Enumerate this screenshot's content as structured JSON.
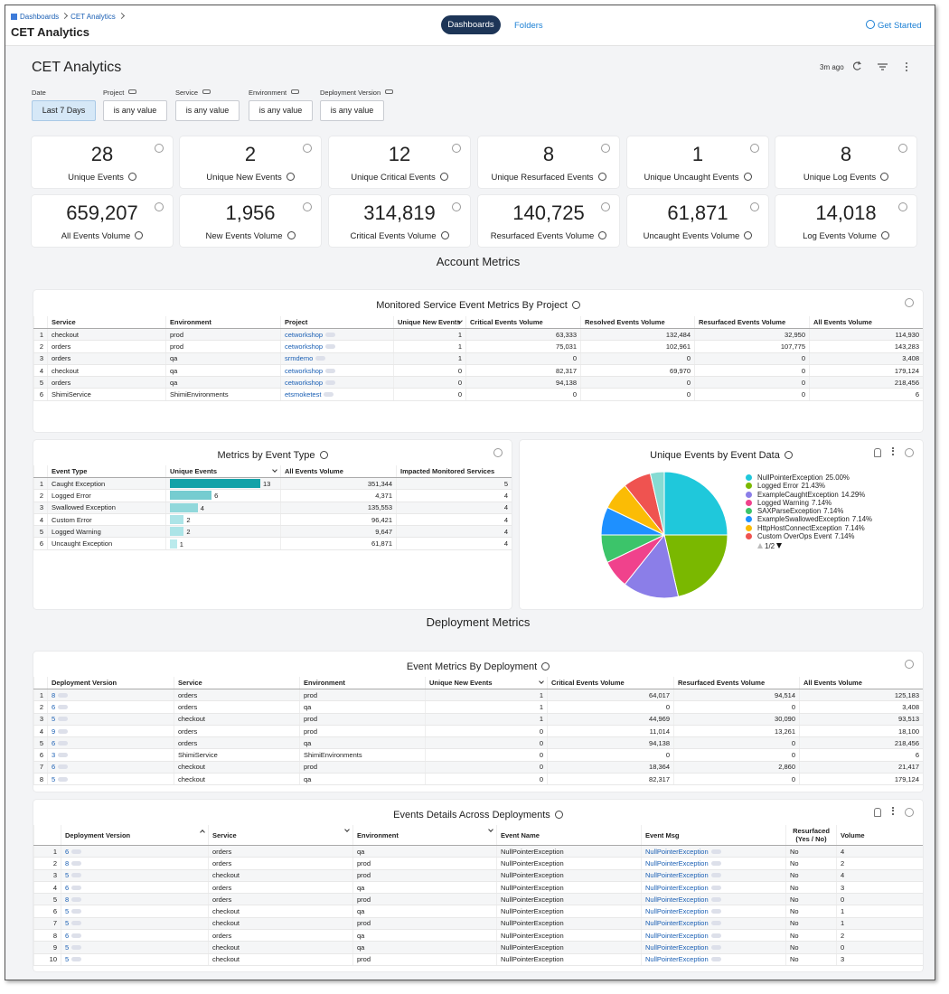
{
  "header": {
    "breadcrumb": [
      "Dashboards",
      "CET Analytics"
    ],
    "title": "CET Analytics",
    "tabs": [
      "Dashboards",
      "Folders"
    ],
    "help": "Get Started"
  },
  "dashboard": {
    "title": "CET Analytics",
    "updated": "3m ago",
    "filters": [
      {
        "label": "Date",
        "value": "Last 7 Days"
      },
      {
        "label": "Project",
        "value": "is any value"
      },
      {
        "label": "Service",
        "value": "is any value"
      },
      {
        "label": "Environment",
        "value": "is any value"
      },
      {
        "label": "Deployment Version",
        "value": "is any value"
      }
    ]
  },
  "tiles": [
    {
      "value": "28",
      "label": "Unique Events"
    },
    {
      "value": "2",
      "label": "Unique New Events"
    },
    {
      "value": "12",
      "label": "Unique Critical Events"
    },
    {
      "value": "8",
      "label": "Unique Resurfaced Events"
    },
    {
      "value": "1",
      "label": "Unique Uncaught Events"
    },
    {
      "value": "8",
      "label": "Unique Log Events"
    },
    {
      "value": "659,207",
      "label": "All Events Volume"
    },
    {
      "value": "1,956",
      "label": "New Events Volume"
    },
    {
      "value": "314,819",
      "label": "Critical Events Volume"
    },
    {
      "value": "140,725",
      "label": "Resurfaced Events Volume"
    },
    {
      "value": "61,871",
      "label": "Uncaught Events Volume"
    },
    {
      "value": "14,018",
      "label": "Log Events Volume"
    }
  ],
  "sections": [
    "Account Metrics",
    "Deployment Metrics"
  ],
  "project_table": {
    "title": "Monitored Service Event Metrics By Project",
    "columns": [
      "Service",
      "Environment",
      "Project",
      "Unique New Events",
      "Critical Events Volume",
      "Resolved Events Volume",
      "Resurfaced Events Volume",
      "All Events Volume"
    ],
    "rows": [
      [
        "1",
        "checkout",
        "prod",
        "cetworkshop",
        "1",
        "63,333",
        "132,484",
        "32,950",
        "114,930"
      ],
      [
        "2",
        "orders",
        "prod",
        "cetworkshop",
        "1",
        "75,031",
        "102,961",
        "107,775",
        "143,283"
      ],
      [
        "3",
        "orders",
        "qa",
        "srmdemo",
        "1",
        "0",
        "0",
        "0",
        "3,408"
      ],
      [
        "4",
        "checkout",
        "qa",
        "cetworkshop",
        "0",
        "82,317",
        "69,970",
        "0",
        "179,124"
      ],
      [
        "5",
        "orders",
        "qa",
        "cetworkshop",
        "0",
        "94,138",
        "0",
        "0",
        "218,456"
      ],
      [
        "6",
        "ShimiService",
        "ShimiEnvironments",
        "etsmoketest",
        "0",
        "0",
        "0",
        "0",
        "6"
      ]
    ]
  },
  "event_type_table": {
    "title": "Metrics by Event Type",
    "columns": [
      "Event Type",
      "Unique Events",
      "All Events Volume",
      "Impacted Monitored Services"
    ],
    "rows": [
      [
        "1",
        "Caught Exception",
        13,
        "351,344",
        "5"
      ],
      [
        "2",
        "Logged Error",
        6,
        "4,371",
        "4"
      ],
      [
        "3",
        "Swallowed Exception",
        4,
        "135,553",
        "4"
      ],
      [
        "4",
        "Custom Error",
        2,
        "96,421",
        "4"
      ],
      [
        "5",
        "Logged Warning",
        2,
        "9,647",
        "4"
      ],
      [
        "6",
        "Uncaught Exception",
        1,
        "61,871",
        "4"
      ]
    ]
  },
  "pie": {
    "type": "pie",
    "title": "Unique Events by Event Data",
    "page": "1/2",
    "slices": [
      {
        "name": "NullPointerException",
        "label": "25.00%",
        "value": 25,
        "color": "#1fc8db"
      },
      {
        "name": "Logged Error",
        "label": "21.43%",
        "value": 21.43,
        "color": "#7ab800"
      },
      {
        "name": "ExampleCaughtException",
        "label": "14.29%",
        "value": 14.29,
        "color": "#8b7ee8"
      },
      {
        "name": "Logged Warning",
        "label": "7.14%",
        "value": 7.14,
        "color": "#f0428c"
      },
      {
        "name": "SAXParseException",
        "label": "7.14%",
        "value": 7.14,
        "color": "#3cc46a"
      },
      {
        "name": "ExampleSwallowedException",
        "label": "7.14%",
        "value": 7.14,
        "color": "#1e90ff"
      },
      {
        "name": "HttpHostConnectException",
        "label": "7.14%",
        "value": 7.14,
        "color": "#fbbc05"
      },
      {
        "name": "Custom OverOps Event",
        "label": "7.14%",
        "value": 7.14,
        "color": "#ef5350"
      },
      {
        "name": null,
        "value": 3.57,
        "color": "#86dbd3"
      }
    ]
  },
  "deployment_table": {
    "title": "Event Metrics By Deployment",
    "columns": [
      "Deployment Version",
      "Service",
      "Environment",
      "Unique New Events",
      "Critical Events Volume",
      "Resurfaced Events Volume",
      "All Events Volume"
    ],
    "rows": [
      [
        "1",
        "8",
        "orders",
        "prod",
        "1",
        "64,017",
        "94,514",
        "125,183"
      ],
      [
        "2",
        "6",
        "orders",
        "qa",
        "1",
        "0",
        "0",
        "3,408"
      ],
      [
        "3",
        "5",
        "checkout",
        "prod",
        "1",
        "44,969",
        "30,090",
        "93,513"
      ],
      [
        "4",
        "9",
        "orders",
        "prod",
        "0",
        "11,014",
        "13,261",
        "18,100"
      ],
      [
        "5",
        "6",
        "orders",
        "qa",
        "0",
        "94,138",
        "0",
        "218,456"
      ],
      [
        "6",
        "3",
        "ShimiService",
        "ShimiEnvironments",
        "0",
        "0",
        "0",
        "6"
      ],
      [
        "7",
        "6",
        "checkout",
        "prod",
        "0",
        "18,364",
        "2,860",
        "21,417"
      ],
      [
        "8",
        "5",
        "checkout",
        "qa",
        "0",
        "82,317",
        "0",
        "179,124"
      ]
    ]
  },
  "details_table": {
    "title": "Events Details Across Deployments",
    "columns": [
      "Deployment Version",
      "Service",
      "Environment",
      "Event Name",
      "Event Msg",
      "Resurfaced (Yes / No)",
      "Volume"
    ],
    "rows": [
      [
        "1",
        "6",
        "orders",
        "qa",
        "NullPointerException",
        "NullPointerException",
        "No",
        "4"
      ],
      [
        "2",
        "8",
        "orders",
        "prod",
        "NullPointerException",
        "NullPointerException",
        "No",
        "2"
      ],
      [
        "3",
        "5",
        "checkout",
        "prod",
        "NullPointerException",
        "NullPointerException",
        "No",
        "4"
      ],
      [
        "4",
        "6",
        "orders",
        "qa",
        "NullPointerException",
        "NullPointerException",
        "No",
        "3"
      ],
      [
        "5",
        "8",
        "orders",
        "prod",
        "NullPointerException",
        "NullPointerException",
        "No",
        "0"
      ],
      [
        "6",
        "5",
        "checkout",
        "qa",
        "NullPointerException",
        "NullPointerException",
        "No",
        "1"
      ],
      [
        "7",
        "5",
        "checkout",
        "prod",
        "NullPointerException",
        "NullPointerException",
        "No",
        "1"
      ],
      [
        "8",
        "6",
        "orders",
        "qa",
        "NullPointerException",
        "NullPointerException",
        "No",
        "2"
      ],
      [
        "9",
        "5",
        "checkout",
        "qa",
        "NullPointerException",
        "NullPointerException",
        "No",
        "0"
      ],
      [
        "10",
        "5",
        "checkout",
        "prod",
        "NullPointerException",
        "NullPointerException",
        "No",
        "3"
      ]
    ]
  }
}
